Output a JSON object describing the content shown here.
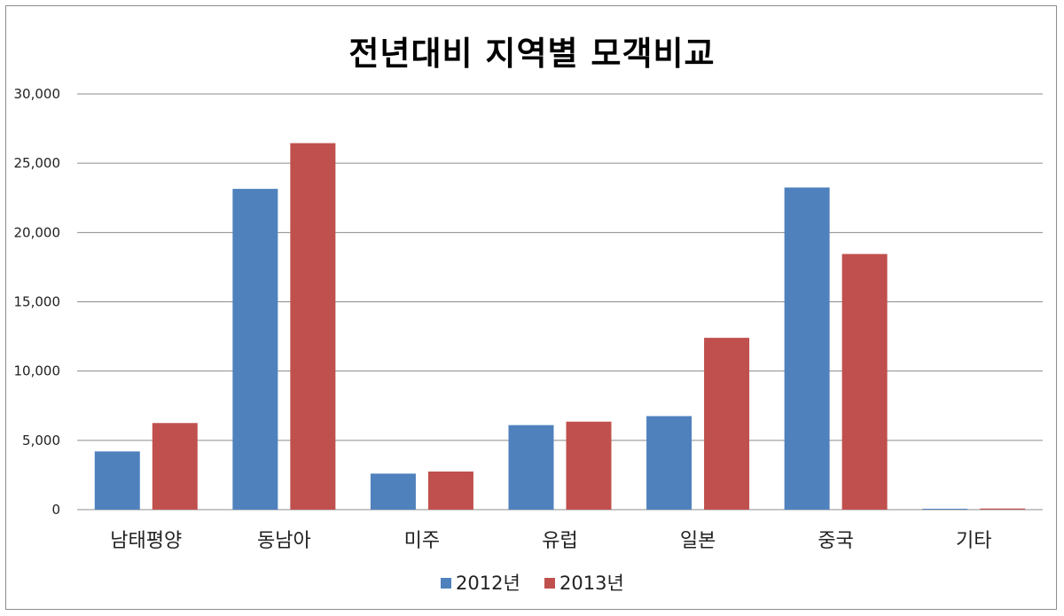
{
  "chart_data": {
    "type": "bar",
    "title": "전년대비 지역별 모객비교",
    "xlabel": "",
    "ylabel": "",
    "categories": [
      "남태평양",
      "동남아",
      "미주",
      "유럽",
      "일본",
      "중국",
      "기타"
    ],
    "series": [
      {
        "name": "2012년",
        "color": "#4f81bd",
        "values": [
          4200,
          23150,
          2600,
          6100,
          6750,
          23250,
          60
        ]
      },
      {
        "name": "2013년",
        "color": "#c0504d",
        "values": [
          6250,
          26450,
          2750,
          6350,
          12400,
          18450,
          80
        ]
      }
    ],
    "ylim": [
      0,
      30000
    ],
    "yticks": [
      0,
      5000,
      10000,
      15000,
      20000,
      25000,
      30000
    ],
    "ytick_labels": [
      "0",
      "5,000",
      "10,000",
      "15,000",
      "20,000",
      "25,000",
      "30,000"
    ],
    "grid": true,
    "legend_position": "bottom"
  }
}
